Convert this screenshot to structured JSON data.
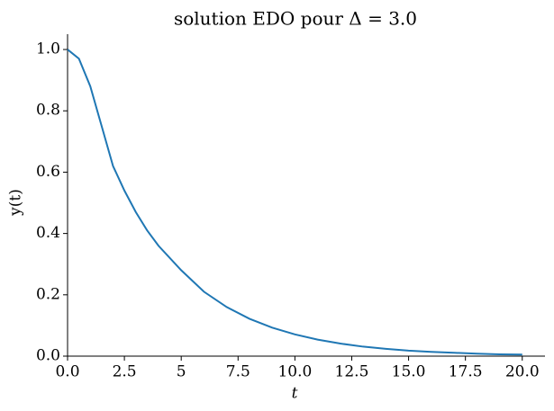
{
  "chart_data": {
    "type": "line",
    "title": "solution EDO pour Δ = 3.0",
    "xlabel": "t",
    "ylabel": "y(t)",
    "x": [
      0,
      0.5,
      1,
      1.5,
      2,
      2.5,
      3,
      3.5,
      4,
      5,
      6,
      7,
      8,
      9,
      10,
      11,
      12,
      13,
      14,
      15,
      16,
      17,
      18,
      19,
      20
    ],
    "series": [
      {
        "color": "#1f77b4",
        "values": [
          1.0,
          0.97,
          0.88,
          0.75,
          0.62,
          0.54,
          0.47,
          0.41,
          0.36,
          0.28,
          0.21,
          0.16,
          0.122,
          0.093,
          0.071,
          0.054,
          0.041,
          0.031,
          0.024,
          0.018,
          0.014,
          0.011,
          0.008,
          0.006,
          0.005
        ]
      }
    ],
    "xlim": [
      0,
      21
    ],
    "ylim": [
      0,
      1.05
    ],
    "xticks": [
      {
        "value": 0,
        "label": "0.0"
      },
      2.5,
      5.0,
      7.5,
      {
        "value": 10,
        "label": "10.0"
      },
      12.5,
      {
        "value": 15,
        "label": "15.0"
      },
      17.5,
      {
        "value": 20,
        "label": "20.0"
      }
    ],
    "yticks": [
      {
        "value": 0,
        "label": "0.0"
      },
      0.2,
      0.4,
      0.6,
      0.8,
      {
        "value": 1,
        "label": "1.0"
      }
    ]
  }
}
